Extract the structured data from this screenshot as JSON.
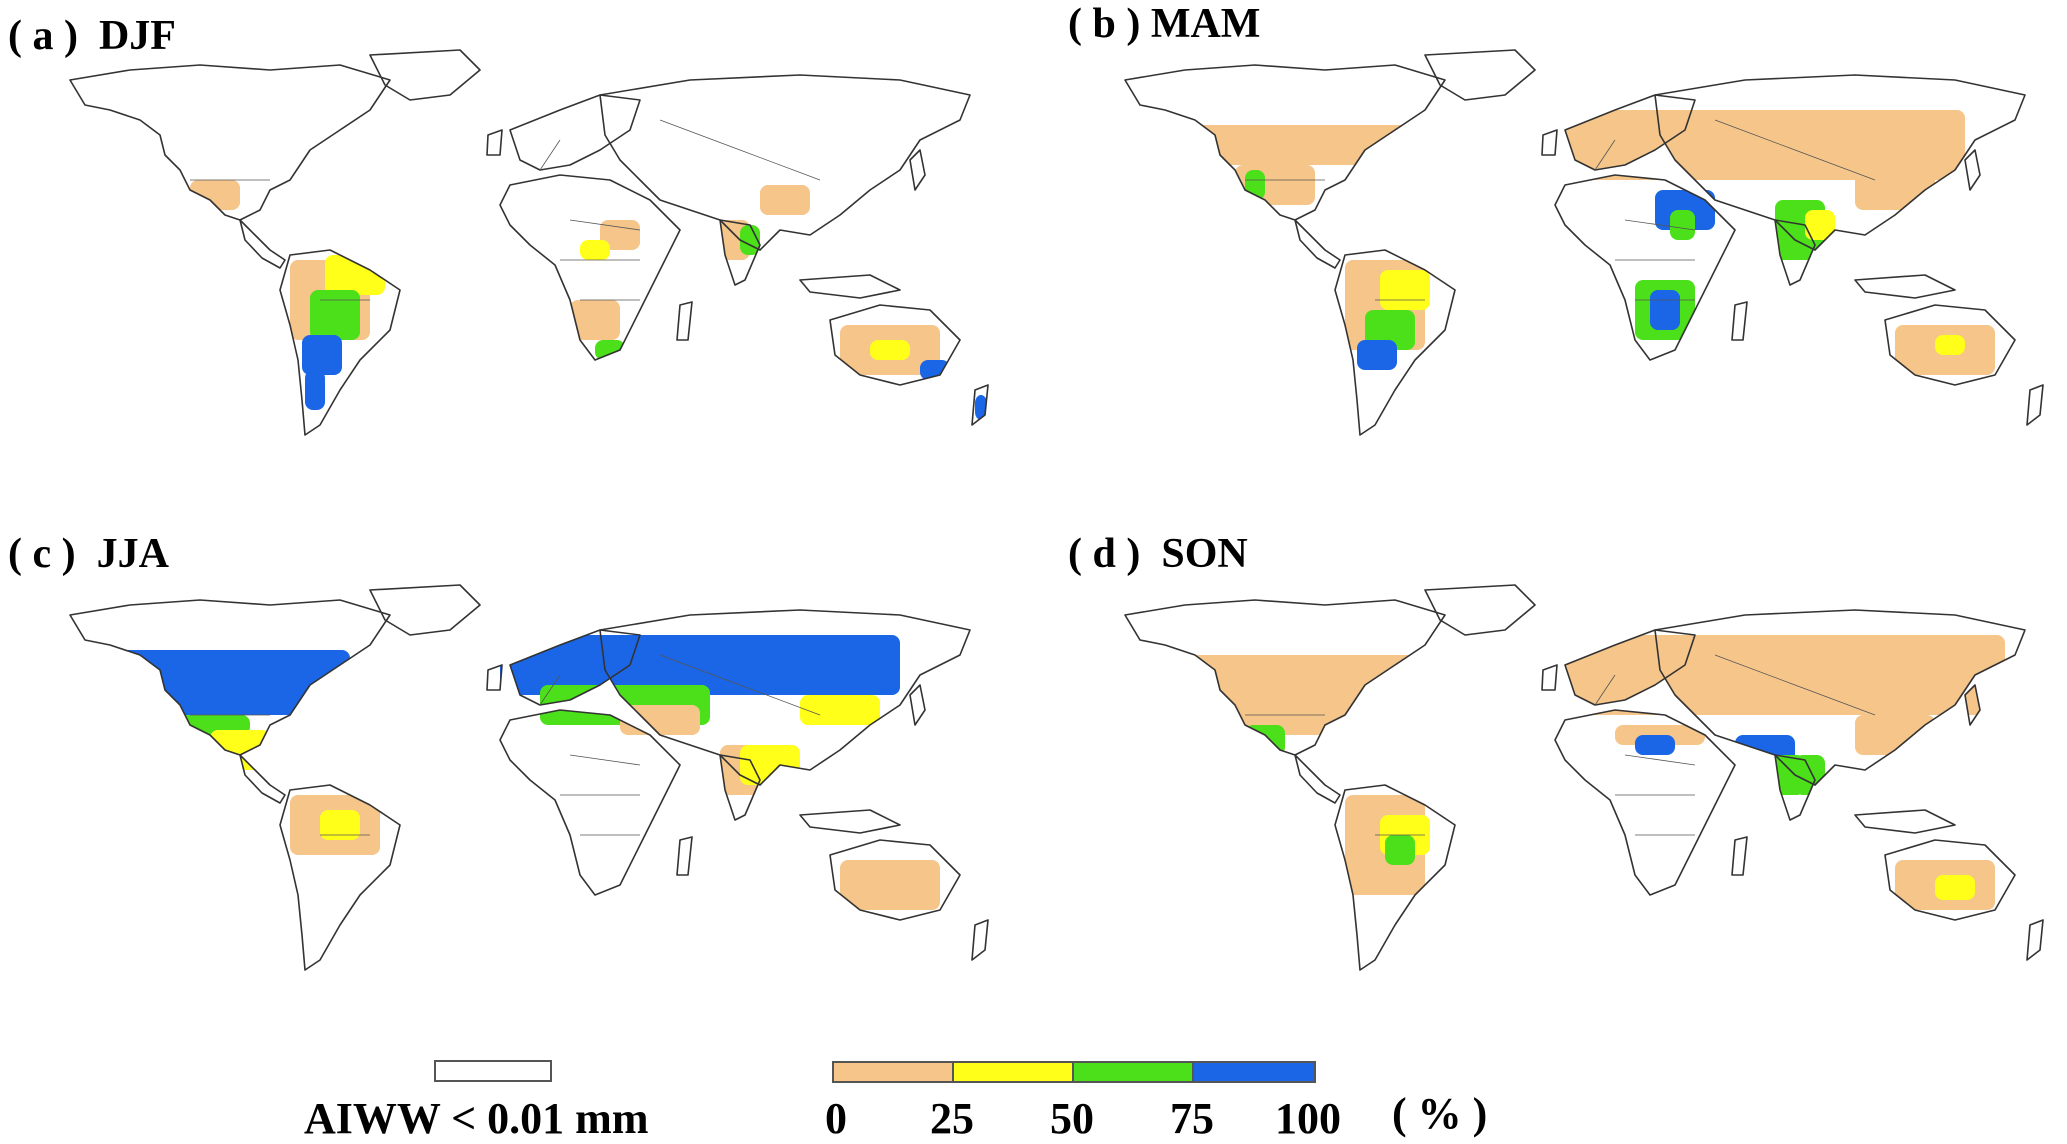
{
  "panels": [
    {
      "id": "a",
      "label": "( a )  DJF"
    },
    {
      "id": "b",
      "label": "( b ) MAM"
    },
    {
      "id": "c",
      "label": "( c )  JJA"
    },
    {
      "id": "d",
      "label": "( d )  SON"
    }
  ],
  "legend": {
    "none_label": "AIWW < 0.01 mm",
    "ticks": [
      "0",
      "25",
      "50",
      "75",
      "100"
    ],
    "unit": "( % )",
    "colors": [
      "#f5c58a",
      "#ffff1a",
      "#4ce01a",
      "#1a66e6"
    ]
  }
}
